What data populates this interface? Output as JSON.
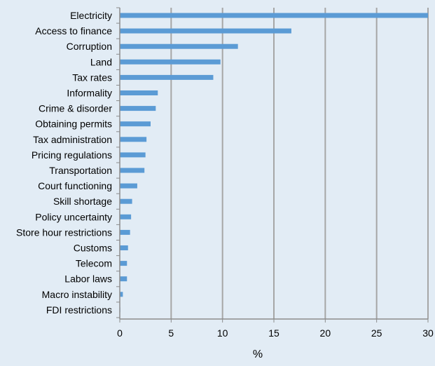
{
  "chart_data": {
    "type": "bar",
    "orientation": "horizontal",
    "title": "",
    "xlabel": "%",
    "ylabel": "",
    "xlim": [
      0,
      30
    ],
    "x_ticks": [
      0,
      5,
      10,
      15,
      20,
      25,
      30
    ],
    "grid": "vertical",
    "categories": [
      "Electricity",
      "Access to finance",
      "Corruption",
      "Land",
      "Tax rates",
      "Informality",
      "Crime & disorder",
      "Obtaining permits",
      "Tax administration",
      "Pricing regulations",
      "Transportation",
      "Court functioning",
      "Skill shortage",
      "Policy uncertainty",
      "Store hour restrictions",
      "Customs",
      "Telecom",
      "Labor laws",
      "Macro instability",
      "FDI restrictions"
    ],
    "values": [
      30.0,
      16.7,
      11.5,
      9.8,
      9.1,
      3.7,
      3.5,
      3.0,
      2.6,
      2.5,
      2.4,
      1.7,
      1.2,
      1.1,
      1.0,
      0.8,
      0.7,
      0.7,
      0.3,
      0.05
    ],
    "colors": {
      "background": "#e2ecf5",
      "bar": "#5b9bd5",
      "grid": "#a6a6a6",
      "axis": "#8c8c8c"
    }
  }
}
